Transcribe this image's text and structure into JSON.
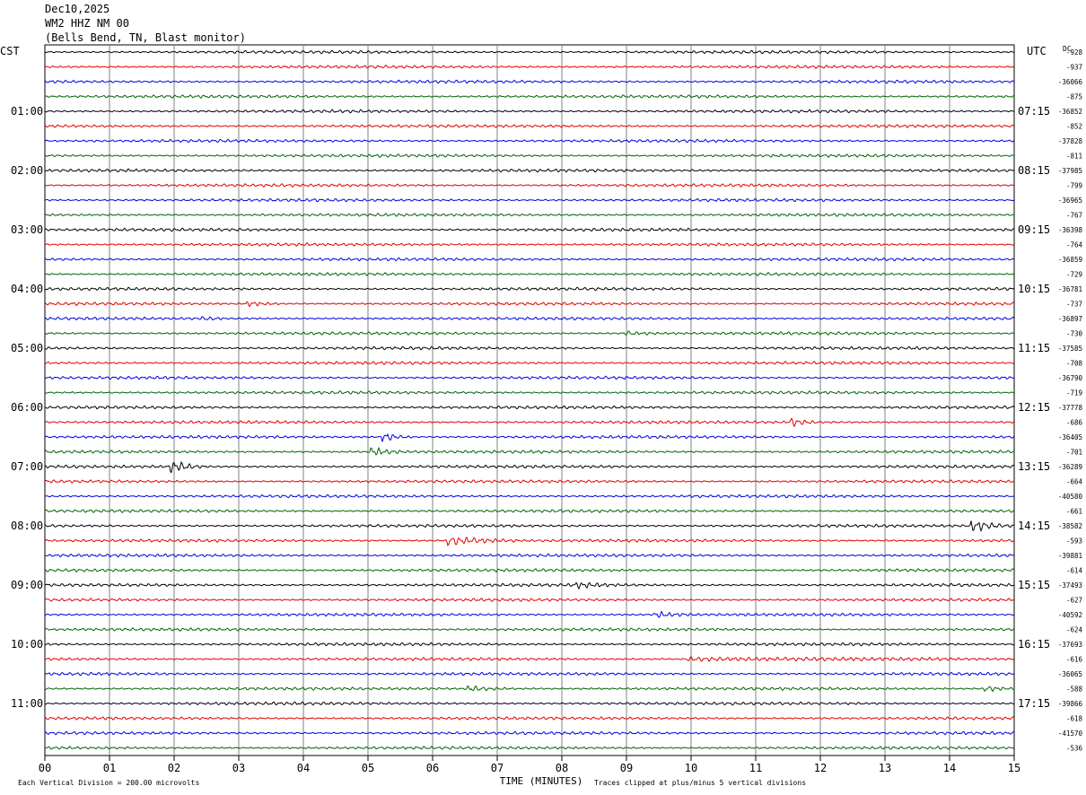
{
  "header": {
    "date": "Dec10,2025",
    "station": "WM2 HHZ NM 00",
    "location": "(Bells Bend, TN, Blast monitor)"
  },
  "labels": {
    "left_tz": "CST",
    "right_tz": "UTC",
    "dc": "DC",
    "xlabel": "TIME (MINUTES)",
    "scale_note": "Each Vertical Division =  200.00 microvolts",
    "clip_note": "Traces clipped at plus/minus 5 vertical divisions"
  },
  "chart_data": {
    "type": "line",
    "title": "",
    "x_ticks": [
      "00",
      "01",
      "02",
      "03",
      "04",
      "05",
      "06",
      "07",
      "08",
      "09",
      "10",
      "11",
      "12",
      "13",
      "14",
      "15"
    ],
    "xlim": [
      0,
      15
    ],
    "grid": true,
    "trace_colors": [
      "#000000",
      "#e00000",
      "#0000e0",
      "#006400"
    ],
    "rows_per_hour": 4,
    "rows": 48,
    "hour_labels_local": [
      "01:00",
      "02:00",
      "03:00",
      "04:00",
      "05:00",
      "06:00",
      "07:00",
      "08:00",
      "09:00",
      "10:00",
      "11:00"
    ],
    "hour_labels_utc": [
      "07:15",
      "08:15",
      "09:15",
      "10:15",
      "11:15",
      "12:15",
      "13:15",
      "14:15",
      "15:15",
      "16:15",
      "17:15"
    ],
    "dc_offsets": [
      "-928",
      "-937",
      "-36066",
      "-875",
      "-36852",
      "-852",
      "-37828",
      "-811",
      "-37985",
      "-799",
      "-36965",
      "-767",
      "-36398",
      "-764",
      "-36859",
      "-729",
      "-36781",
      "-737",
      "-36897",
      "-730",
      "-37585",
      "-708",
      "-36790",
      "-719",
      "-37778",
      "-686",
      "-36405",
      "-701",
      "-36289",
      "-664",
      "-40580",
      "-661",
      "-38582",
      "-593",
      "-39881",
      "-614",
      "-37493",
      "-627",
      "-40592",
      "-624",
      "-37693",
      "-616",
      "-36065",
      "-588",
      "-39866",
      "-618",
      "-41570",
      "-536"
    ],
    "events": [
      {
        "row": 17,
        "minute": 3.2,
        "amplitude": 2.5,
        "duration": 0.5
      },
      {
        "row": 18,
        "minute": 2.5,
        "amplitude": 1.5,
        "duration": 0.3
      },
      {
        "row": 19,
        "minute": 9.0,
        "amplitude": 2.0,
        "duration": 0.8
      },
      {
        "row": 25,
        "minute": 11.6,
        "amplitude": 4.0,
        "duration": 0.4
      },
      {
        "row": 26,
        "minute": 5.3,
        "amplitude": 5.0,
        "duration": 0.4
      },
      {
        "row": 27,
        "minute": 5.1,
        "amplitude": 4.5,
        "duration": 0.5
      },
      {
        "row": 28,
        "minute": 2.0,
        "amplitude": 6.0,
        "duration": 0.5
      },
      {
        "row": 32,
        "minute": 14.4,
        "amplitude": 5.5,
        "duration": 0.6
      },
      {
        "row": 33,
        "minute": 6.3,
        "amplitude": 5.5,
        "duration": 1.0
      },
      {
        "row": 36,
        "minute": 8.3,
        "amplitude": 2.5,
        "duration": 0.6
      },
      {
        "row": 38,
        "minute": 9.5,
        "amplitude": 3.0,
        "duration": 0.6
      },
      {
        "row": 41,
        "minute": 10.0,
        "amplitude": 2.0,
        "duration": 4.0
      },
      {
        "row": 43,
        "minute": 6.6,
        "amplitude": 3.0,
        "duration": 0.7
      },
      {
        "row": 43,
        "minute": 14.6,
        "amplitude": 3.0,
        "duration": 0.5
      }
    ]
  }
}
